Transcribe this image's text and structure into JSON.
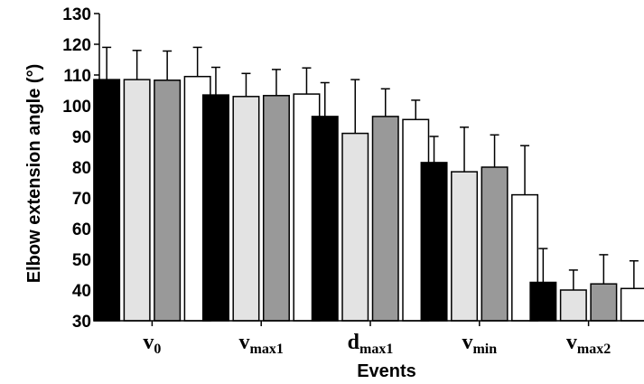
{
  "chart_data": {
    "type": "bar",
    "xlabel": "Events",
    "ylabel": "Elbow extension angle (°)",
    "ylim": [
      30,
      130
    ],
    "yticks": [
      30,
      40,
      50,
      60,
      70,
      80,
      90,
      100,
      110,
      120,
      130
    ],
    "grid": false,
    "categories": [
      {
        "base": "v",
        "sub": "0"
      },
      {
        "base": "v",
        "sub": "max1"
      },
      {
        "base": "d",
        "sub": "max1"
      },
      {
        "base": "v",
        "sub": "min"
      },
      {
        "base": "v",
        "sub": "max2"
      }
    ],
    "series": [
      {
        "color": "#000000",
        "values": [
          108.5,
          103.5,
          96.5,
          81.5,
          42.5
        ],
        "errors": [
          10.5,
          9,
          11,
          8.5,
          11
        ]
      },
      {
        "color": "#e3e3e3",
        "values": [
          108.5,
          103,
          91,
          78.5,
          40
        ],
        "errors": [
          9.5,
          7.5,
          17.5,
          14.5,
          6.5
        ]
      },
      {
        "color": "#999999",
        "values": [
          108.3,
          103.3,
          96.5,
          80,
          42
        ],
        "errors": [
          9.5,
          8.5,
          9,
          10.5,
          9.5
        ]
      },
      {
        "color": "#ffffff",
        "values": [
          109.5,
          103.8,
          95.5,
          71,
          40.5
        ],
        "errors": [
          9.5,
          8.5,
          6.3,
          16,
          9
        ]
      }
    ]
  }
}
